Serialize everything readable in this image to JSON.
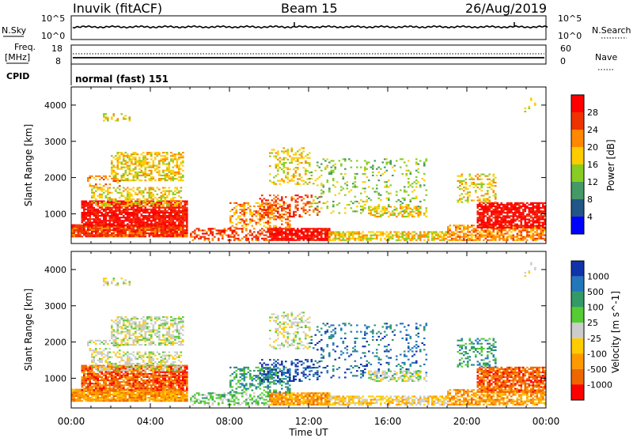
{
  "header": {
    "station": "Inuvik (fitACF)",
    "beam": "Beam 15",
    "date": "26/Aug/2019"
  },
  "params_panels": {
    "nsky_label": "N.Sky",
    "nsky_ticks": [
      "10^5",
      "10^0"
    ],
    "nsearch_label": "N.Search",
    "nsearch_ticks": [
      "10^5",
      "10^0"
    ],
    "freq_label": "Freq.",
    "freq_unit": "[MHz]",
    "freq_ticks": [
      "18",
      "8"
    ],
    "nave_label": "Nave",
    "nave_ticks": [
      "60",
      "0"
    ],
    "cpid_label": "CPID",
    "cpid_value": "normal (fast) 151"
  },
  "chart_data": [
    {
      "type": "heatmap",
      "name": "power",
      "ylabel": "Slant Range [km]",
      "y_ticks": [
        "4000",
        "3000",
        "2000",
        "1000"
      ],
      "ylim": [
        180,
        4500
      ],
      "colorbar_label": "Power [dB]",
      "colorbar_ticks": [
        "28",
        "24",
        "20",
        "16",
        "12",
        "8",
        "4"
      ],
      "colorbar_colors": [
        "#ff0000",
        "#ee3300",
        "#ff8800",
        "#ffcc00",
        "#88cc22",
        "#449966",
        "#225588",
        "#0000ff"
      ]
    },
    {
      "type": "heatmap",
      "name": "velocity",
      "ylabel": "Slant Range [km]",
      "y_ticks": [
        "4000",
        "3000",
        "2000",
        "1000"
      ],
      "ylim": [
        180,
        4500
      ],
      "colorbar_label": "Velocity [m s^-1]",
      "colorbar_ticks": [
        "1000",
        "500",
        "100",
        "25",
        "-25",
        "-100",
        "-500",
        "-1000"
      ],
      "colorbar_colors": [
        "#1133aa",
        "#2277bb",
        "#339966",
        "#55cc33",
        "#cccccc",
        "#ffcc00",
        "#ff9900",
        "#ee6600",
        "#ff0000"
      ]
    }
  ],
  "x_axis": {
    "ticks": [
      "00:00",
      "04:00",
      "08:00",
      "12:00",
      "16:00",
      "20:00",
      "00:00"
    ],
    "label": "Time UT"
  }
}
